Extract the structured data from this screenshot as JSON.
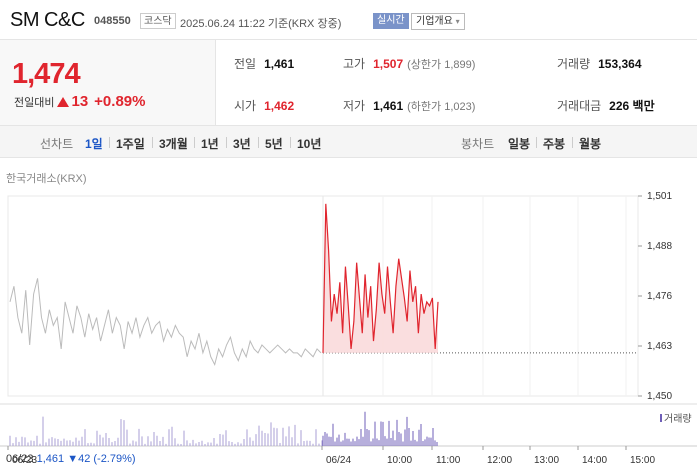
{
  "header": {
    "name": "SM C&C",
    "code": "048550",
    "market": "코스닥",
    "date": "2025.06.24 11:22 기준(KRX 장중)",
    "realtime": "실시간",
    "company_btn": "기업개요"
  },
  "price": {
    "now": "1,474",
    "change_label": "전일대비",
    "change": "13",
    "change_pct": "+0.89%"
  },
  "info": {
    "prev": {
      "label": "전일",
      "value": "1,461"
    },
    "high": {
      "label": "고가",
      "value": "1,507",
      "sub": "(상한가 1,899)"
    },
    "volume": {
      "label": "거래량",
      "value": "153,364"
    },
    "open": {
      "label": "시가",
      "value": "1,462"
    },
    "low": {
      "label": "저가",
      "value": "1,461",
      "sub": "(하한가 1,023)"
    },
    "amount": {
      "label": "거래대금",
      "value": "226 백만"
    }
  },
  "period": {
    "line_label": "선차트",
    "line": [
      "1일",
      "1주일",
      "3개월",
      "1년",
      "3년",
      "5년",
      "10년"
    ],
    "active": "1일",
    "candle_label": "봉차트",
    "candle": [
      "일봉",
      "주봉",
      "월봉"
    ]
  },
  "exchange": "한국거래소(KRX)",
  "legend": "거래량",
  "footer": {
    "date": "06/23",
    "price": "1,461",
    "change": "▼42 (-2.79%)"
  },
  "colors": {
    "up": "#e0252e",
    "down": "#1c56c6",
    "prev_line": "#bbbbbb",
    "volume": "#6f5fb8"
  },
  "chart_data": {
    "type": "line",
    "ylim": [
      1450,
      1501
    ],
    "y_ticks": [
      "1,501",
      "1,488",
      "1,476",
      "1,463",
      "1,450"
    ],
    "x_ticks": [
      "06/23",
      "06/24",
      "10:00",
      "11:00",
      "12:00",
      "13:00",
      "14:00",
      "15:00"
    ],
    "series": [
      {
        "values": [
          1474,
          1478,
          1470,
          1466,
          1477,
          1463,
          1476,
          1480,
          1470,
          1466,
          1472,
          1468,
          1470,
          1462,
          1474,
          1470,
          1466,
          1473,
          1470,
          1465,
          1471,
          1467,
          1470,
          1464,
          1468,
          1472,
          1466,
          1470,
          1468,
          1462,
          1469,
          1466,
          1470,
          1465,
          1468,
          1470,
          1466,
          1468,
          1469,
          1464,
          1467,
          1465,
          1468,
          1466,
          1465,
          1460,
          1464,
          1462,
          1466,
          1461,
          1464,
          1460,
          1458,
          1462,
          1460,
          1463,
          1465,
          1461,
          1459,
          1462,
          1460,
          1464,
          1462,
          1461,
          1463,
          1462,
          1461,
          1462,
          1463,
          1462,
          1461,
          1462,
          1461,
          1461,
          1460,
          1462,
          1461,
          1460,
          1462,
          1461
        ]
      },
      {
        "values": [
          1461,
          1499,
          1487,
          1469,
          1476,
          1471,
          1479,
          1466,
          1483,
          1473,
          1462,
          1469,
          1484,
          1475,
          1466,
          1481,
          1470,
          1478,
          1464,
          1472,
          1484,
          1476,
          1471,
          1483,
          1474,
          1466,
          1478,
          1485,
          1480,
          1475,
          1469,
          1482,
          1474,
          1478,
          1466,
          1476,
          1471,
          1474,
          1473,
          1475,
          1462,
          1474
        ]
      }
    ],
    "prev_close": 1461
  }
}
